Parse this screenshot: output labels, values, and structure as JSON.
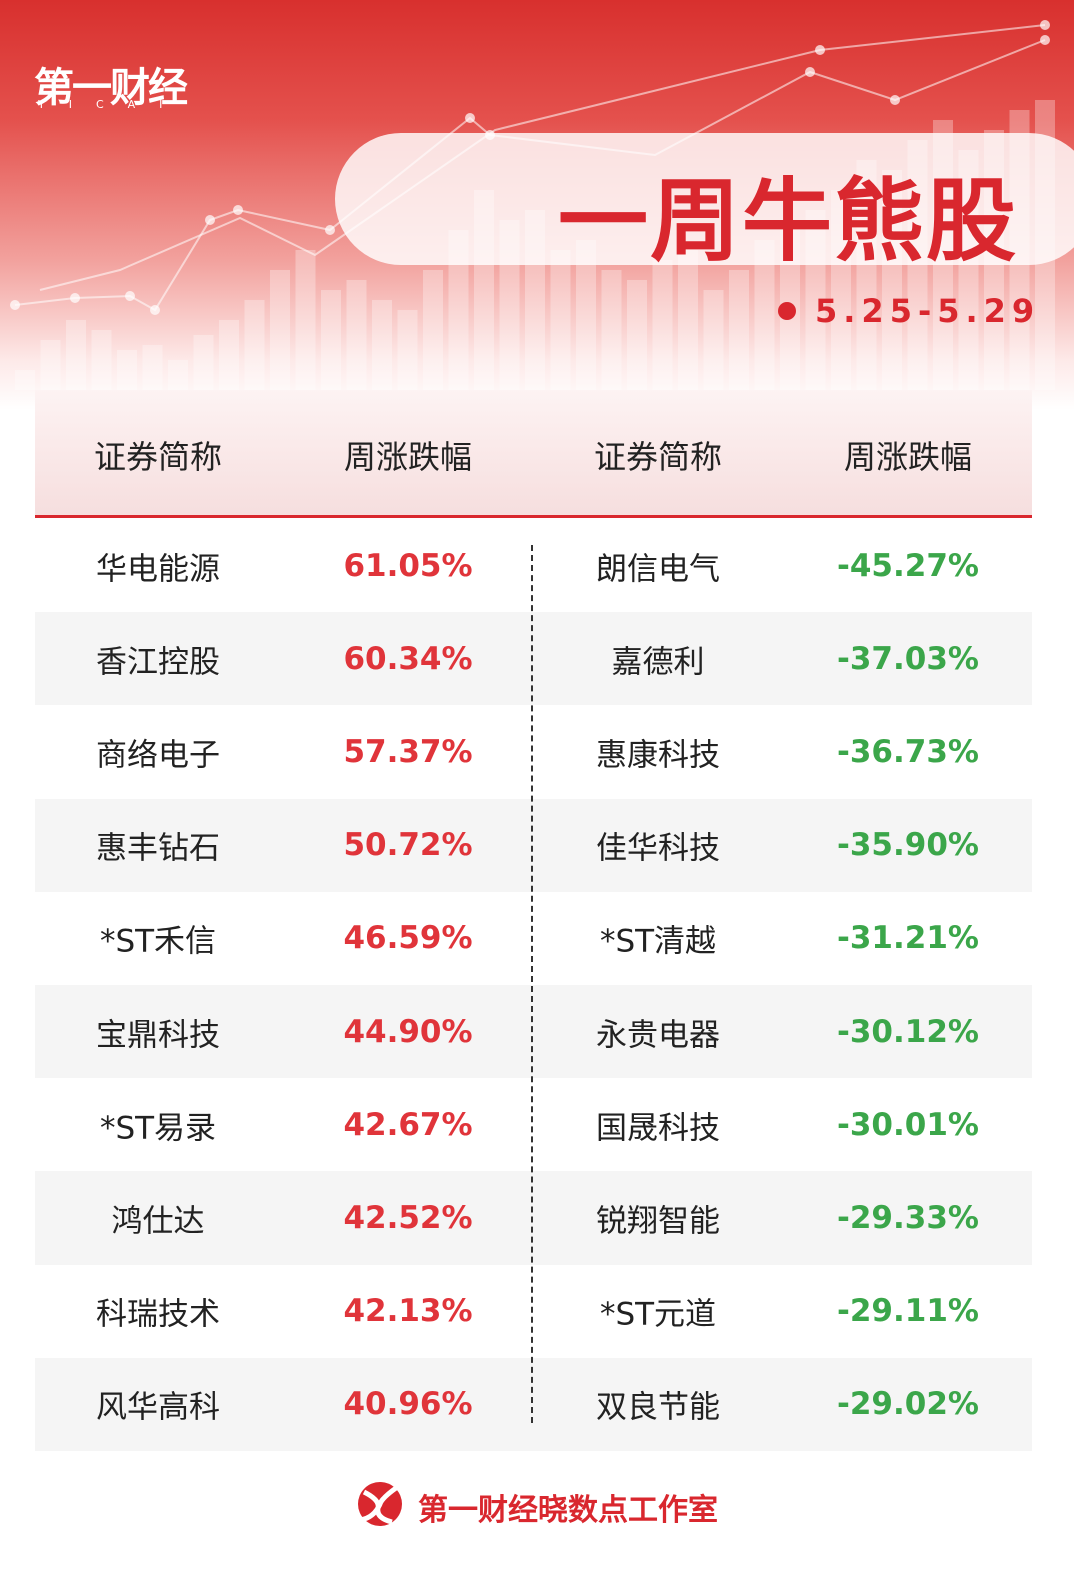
{
  "header": {
    "logo": "第一财经",
    "logo_sub": "YICAI",
    "title": "一周牛熊股",
    "date": "5.25-5.29"
  },
  "table": {
    "columns": [
      "证券简称",
      "周涨跌幅",
      "证券简称",
      "周涨跌幅"
    ],
    "rows": [
      [
        "华电能源",
        "61.05%",
        "朗信电气",
        "-45.27%"
      ],
      [
        "香江控股",
        "60.34%",
        "嘉德利",
        "-37.03%"
      ],
      [
        "商络电子",
        "57.37%",
        "惠康科技",
        "-36.73%"
      ],
      [
        "惠丰钻石",
        "50.72%",
        "佳华科技",
        "-35.90%"
      ],
      [
        "*ST禾信",
        "46.59%",
        "*ST清越",
        "-31.21%"
      ],
      [
        "宝鼎科技",
        "44.90%",
        "永贵电器",
        "-30.12%"
      ],
      [
        "*ST易录",
        "42.67%",
        "国晟科技",
        "-30.01%"
      ],
      [
        "鸿仕达",
        "42.52%",
        "锐翔智能",
        "-29.33%"
      ],
      [
        "科瑞技术",
        "42.13%",
        "*ST元道",
        "-29.11%"
      ],
      [
        "风华高科",
        "40.96%",
        "双良节能",
        "-29.02%"
      ]
    ]
  },
  "footer": {
    "text": "第一财经晓数点工作室"
  }
}
